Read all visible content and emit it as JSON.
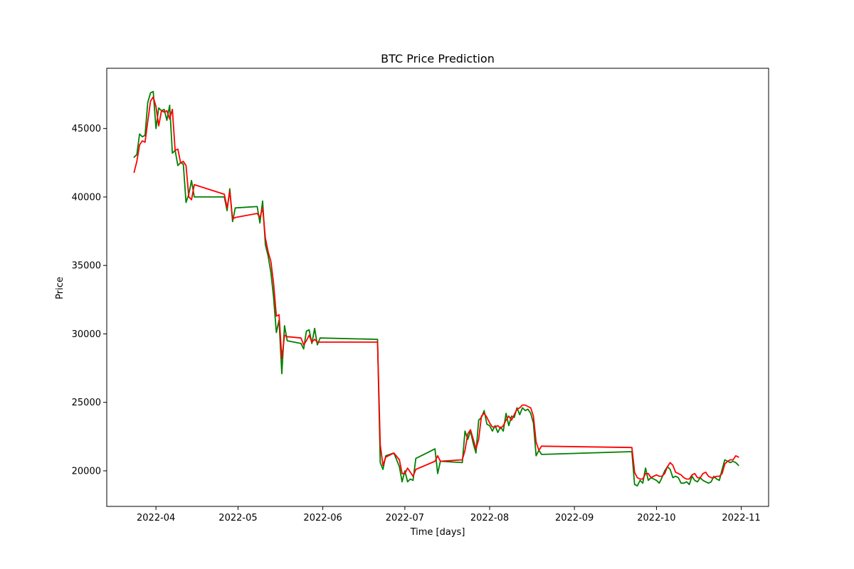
{
  "chart_data": {
    "type": "line",
    "title": "BTC Price Prediction",
    "xlabel": "Time [days]",
    "ylabel": "Price",
    "xlim": [
      "2022-03-14",
      "2022-11-11"
    ],
    "ylim": [
      17400,
      49400
    ],
    "grid": false,
    "x_ticks": [
      "2022-04",
      "2022-05",
      "2022-06",
      "2022-07",
      "2022-08",
      "2022-09",
      "2022-10",
      "2022-11"
    ],
    "y_ticks": [
      20000,
      25000,
      30000,
      35000,
      40000,
      45000
    ],
    "series": [
      {
        "color": "#008000",
        "points": [
          [
            "2022-03-24",
            42900
          ],
          [
            "2022-03-25",
            43100
          ],
          [
            "2022-03-26",
            44600
          ],
          [
            "2022-03-27",
            44400
          ],
          [
            "2022-03-28",
            44500
          ],
          [
            "2022-03-29",
            46900
          ],
          [
            "2022-03-30",
            47600
          ],
          [
            "2022-03-31",
            47700
          ],
          [
            "2022-04-01",
            45000
          ],
          [
            "2022-04-02",
            46500
          ],
          [
            "2022-04-03",
            46300
          ],
          [
            "2022-04-04",
            46400
          ],
          [
            "2022-04-05",
            45600
          ],
          [
            "2022-04-06",
            46700
          ],
          [
            "2022-04-07",
            43200
          ],
          [
            "2022-04-08",
            43400
          ],
          [
            "2022-04-09",
            42300
          ],
          [
            "2022-04-10",
            42500
          ],
          [
            "2022-04-11",
            42400
          ],
          [
            "2022-04-12",
            39600
          ],
          [
            "2022-04-13",
            40200
          ],
          [
            "2022-04-14",
            41200
          ],
          [
            "2022-04-15",
            40000
          ],
          [
            "2022-04-26",
            40000
          ],
          [
            "2022-04-27",
            39000
          ],
          [
            "2022-04-28",
            40600
          ],
          [
            "2022-04-29",
            38200
          ],
          [
            "2022-04-30",
            39200
          ],
          [
            "2022-05-08",
            39300
          ],
          [
            "2022-05-09",
            38100
          ],
          [
            "2022-05-10",
            39700
          ],
          [
            "2022-05-11",
            36500
          ],
          [
            "2022-05-12",
            35700
          ],
          [
            "2022-05-13",
            34500
          ],
          [
            "2022-05-14",
            32700
          ],
          [
            "2022-05-15",
            30100
          ],
          [
            "2022-05-16",
            31000
          ],
          [
            "2022-05-17",
            27100
          ],
          [
            "2022-05-18",
            30600
          ],
          [
            "2022-05-19",
            29500
          ],
          [
            "2022-05-24",
            29300
          ],
          [
            "2022-05-25",
            28900
          ],
          [
            "2022-05-26",
            30200
          ],
          [
            "2022-05-27",
            30300
          ],
          [
            "2022-05-28",
            29300
          ],
          [
            "2022-05-29",
            30400
          ],
          [
            "2022-05-30",
            29200
          ],
          [
            "2022-05-31",
            29700
          ],
          [
            "2022-06-21",
            29600
          ],
          [
            "2022-06-22",
            20600
          ],
          [
            "2022-06-23",
            20100
          ],
          [
            "2022-06-24",
            21100
          ],
          [
            "2022-06-27",
            21300
          ],
          [
            "2022-06-29",
            20300
          ],
          [
            "2022-06-30",
            19200
          ],
          [
            "2022-07-01",
            20000
          ],
          [
            "2022-07-02",
            19200
          ],
          [
            "2022-07-03",
            19400
          ],
          [
            "2022-07-04",
            19300
          ],
          [
            "2022-07-05",
            20900
          ],
          [
            "2022-07-12",
            21600
          ],
          [
            "2022-07-13",
            19800
          ],
          [
            "2022-07-14",
            20700
          ],
          [
            "2022-07-22",
            20600
          ],
          [
            "2022-07-23",
            22900
          ],
          [
            "2022-07-24",
            22300
          ],
          [
            "2022-07-25",
            22900
          ],
          [
            "2022-07-26",
            22000
          ],
          [
            "2022-07-27",
            21300
          ],
          [
            "2022-07-28",
            23700
          ],
          [
            "2022-07-29",
            23900
          ],
          [
            "2022-07-30",
            24400
          ],
          [
            "2022-07-31",
            23400
          ],
          [
            "2022-08-01",
            23300
          ],
          [
            "2022-08-02",
            22900
          ],
          [
            "2022-08-03",
            23300
          ],
          [
            "2022-08-04",
            22800
          ],
          [
            "2022-08-05",
            23200
          ],
          [
            "2022-08-06",
            22900
          ],
          [
            "2022-08-07",
            24200
          ],
          [
            "2022-08-08",
            23300
          ],
          [
            "2022-08-09",
            24000
          ],
          [
            "2022-08-10",
            23900
          ],
          [
            "2022-08-11",
            24600
          ],
          [
            "2022-08-12",
            24100
          ],
          [
            "2022-08-13",
            24600
          ],
          [
            "2022-08-14",
            24400
          ],
          [
            "2022-08-15",
            24500
          ],
          [
            "2022-08-16",
            24200
          ],
          [
            "2022-08-17",
            23500
          ],
          [
            "2022-08-18",
            21100
          ],
          [
            "2022-08-19",
            21500
          ],
          [
            "2022-08-20",
            21200
          ],
          [
            "2022-09-22",
            21400
          ],
          [
            "2022-09-23",
            19000
          ],
          [
            "2022-09-24",
            18900
          ],
          [
            "2022-09-25",
            19300
          ],
          [
            "2022-09-26",
            19100
          ],
          [
            "2022-09-27",
            20200
          ],
          [
            "2022-09-28",
            19300
          ],
          [
            "2022-09-29",
            19500
          ],
          [
            "2022-09-30",
            19400
          ],
          [
            "2022-10-01",
            19300
          ],
          [
            "2022-10-02",
            19100
          ],
          [
            "2022-10-03",
            19500
          ],
          [
            "2022-10-04",
            20000
          ],
          [
            "2022-10-05",
            20300
          ],
          [
            "2022-10-06",
            20100
          ],
          [
            "2022-10-07",
            19500
          ],
          [
            "2022-10-08",
            19600
          ],
          [
            "2022-10-09",
            19500
          ],
          [
            "2022-10-10",
            19100
          ],
          [
            "2022-10-11",
            19100
          ],
          [
            "2022-10-12",
            19200
          ],
          [
            "2022-10-13",
            19000
          ],
          [
            "2022-10-14",
            19600
          ],
          [
            "2022-10-15",
            19300
          ],
          [
            "2022-10-16",
            19200
          ],
          [
            "2022-10-17",
            19500
          ],
          [
            "2022-10-18",
            19300
          ],
          [
            "2022-10-19",
            19200
          ],
          [
            "2022-10-20",
            19100
          ],
          [
            "2022-10-21",
            19200
          ],
          [
            "2022-10-22",
            19600
          ],
          [
            "2022-10-23",
            19400
          ],
          [
            "2022-10-24",
            19300
          ],
          [
            "2022-10-25",
            20100
          ],
          [
            "2022-10-26",
            20800
          ],
          [
            "2022-10-27",
            20700
          ],
          [
            "2022-10-28",
            20600
          ],
          [
            "2022-10-29",
            20700
          ],
          [
            "2022-10-30",
            20600
          ],
          [
            "2022-10-31",
            20400
          ]
        ]
      },
      {
        "color": "#ff0000",
        "points": [
          [
            "2022-03-24",
            41800
          ],
          [
            "2022-03-25",
            42600
          ],
          [
            "2022-03-26",
            43800
          ],
          [
            "2022-03-27",
            44100
          ],
          [
            "2022-03-28",
            44000
          ],
          [
            "2022-03-29",
            45500
          ],
          [
            "2022-03-30",
            47000
          ],
          [
            "2022-03-31",
            47300
          ],
          [
            "2022-04-01",
            46600
          ],
          [
            "2022-04-02",
            45200
          ],
          [
            "2022-04-03",
            46300
          ],
          [
            "2022-04-04",
            46200
          ],
          [
            "2022-04-05",
            46300
          ],
          [
            "2022-04-06",
            45700
          ],
          [
            "2022-04-07",
            46400
          ],
          [
            "2022-04-08",
            43400
          ],
          [
            "2022-04-09",
            43500
          ],
          [
            "2022-04-10",
            42500
          ],
          [
            "2022-04-11",
            42600
          ],
          [
            "2022-04-12",
            42300
          ],
          [
            "2022-04-13",
            40000
          ],
          [
            "2022-04-14",
            39800
          ],
          [
            "2022-04-15",
            40900
          ],
          [
            "2022-04-26",
            40200
          ],
          [
            "2022-04-27",
            39200
          ],
          [
            "2022-04-28",
            40400
          ],
          [
            "2022-04-29",
            38400
          ],
          [
            "2022-04-30",
            38500
          ],
          [
            "2022-05-08",
            38800
          ],
          [
            "2022-05-09",
            38500
          ],
          [
            "2022-05-10",
            39200
          ],
          [
            "2022-05-11",
            37000
          ],
          [
            "2022-05-12",
            36000
          ],
          [
            "2022-05-13",
            35300
          ],
          [
            "2022-05-14",
            33700
          ],
          [
            "2022-05-15",
            31300
          ],
          [
            "2022-05-16",
            31400
          ],
          [
            "2022-05-17",
            28200
          ],
          [
            "2022-05-18",
            29900
          ],
          [
            "2022-05-19",
            29800
          ],
          [
            "2022-05-24",
            29700
          ],
          [
            "2022-05-25",
            29200
          ],
          [
            "2022-05-26",
            29500
          ],
          [
            "2022-05-27",
            29900
          ],
          [
            "2022-05-28",
            29400
          ],
          [
            "2022-05-29",
            29600
          ],
          [
            "2022-05-30",
            29400
          ],
          [
            "2022-05-31",
            29400
          ],
          [
            "2022-06-21",
            29400
          ],
          [
            "2022-06-22",
            21900
          ],
          [
            "2022-06-23",
            20400
          ],
          [
            "2022-06-24",
            21000
          ],
          [
            "2022-06-27",
            21300
          ],
          [
            "2022-06-29",
            20800
          ],
          [
            "2022-06-30",
            19800
          ],
          [
            "2022-07-01",
            19800
          ],
          [
            "2022-07-02",
            20200
          ],
          [
            "2022-07-03",
            19900
          ],
          [
            "2022-07-04",
            19600
          ],
          [
            "2022-07-05",
            20100
          ],
          [
            "2022-07-12",
            20700
          ],
          [
            "2022-07-13",
            21100
          ],
          [
            "2022-07-14",
            20700
          ],
          [
            "2022-07-22",
            20800
          ],
          [
            "2022-07-23",
            21500
          ],
          [
            "2022-07-24",
            22700
          ],
          [
            "2022-07-25",
            23000
          ],
          [
            "2022-07-26",
            22300
          ],
          [
            "2022-07-27",
            21600
          ],
          [
            "2022-07-28",
            22300
          ],
          [
            "2022-07-29",
            24000
          ],
          [
            "2022-07-30",
            24200
          ],
          [
            "2022-07-31",
            23900
          ],
          [
            "2022-08-01",
            23500
          ],
          [
            "2022-08-02",
            23200
          ],
          [
            "2022-08-03",
            23200
          ],
          [
            "2022-08-04",
            23300
          ],
          [
            "2022-08-05",
            23100
          ],
          [
            "2022-08-06",
            23300
          ],
          [
            "2022-08-07",
            23700
          ],
          [
            "2022-08-08",
            24000
          ],
          [
            "2022-08-09",
            23700
          ],
          [
            "2022-08-10",
            24100
          ],
          [
            "2022-08-11",
            24500
          ],
          [
            "2022-08-12",
            24600
          ],
          [
            "2022-08-13",
            24800
          ],
          [
            "2022-08-14",
            24800
          ],
          [
            "2022-08-15",
            24700
          ],
          [
            "2022-08-16",
            24600
          ],
          [
            "2022-08-17",
            24000
          ],
          [
            "2022-08-18",
            22100
          ],
          [
            "2022-08-19",
            21500
          ],
          [
            "2022-08-20",
            21800
          ],
          [
            "2022-09-22",
            21700
          ],
          [
            "2022-09-23",
            19900
          ],
          [
            "2022-09-24",
            19500
          ],
          [
            "2022-09-25",
            19400
          ],
          [
            "2022-09-26",
            19400
          ],
          [
            "2022-09-27",
            19800
          ],
          [
            "2022-09-28",
            19800
          ],
          [
            "2022-09-29",
            19500
          ],
          [
            "2022-09-30",
            19600
          ],
          [
            "2022-10-01",
            19700
          ],
          [
            "2022-10-02",
            19600
          ],
          [
            "2022-10-03",
            19600
          ],
          [
            "2022-10-04",
            19800
          ],
          [
            "2022-10-05",
            20300
          ],
          [
            "2022-10-06",
            20600
          ],
          [
            "2022-10-07",
            20400
          ],
          [
            "2022-10-08",
            19900
          ],
          [
            "2022-10-09",
            19800
          ],
          [
            "2022-10-10",
            19700
          ],
          [
            "2022-10-11",
            19500
          ],
          [
            "2022-10-12",
            19400
          ],
          [
            "2022-10-13",
            19400
          ],
          [
            "2022-10-14",
            19700
          ],
          [
            "2022-10-15",
            19800
          ],
          [
            "2022-10-16",
            19500
          ],
          [
            "2022-10-17",
            19500
          ],
          [
            "2022-10-18",
            19800
          ],
          [
            "2022-10-19",
            19900
          ],
          [
            "2022-10-20",
            19600
          ],
          [
            "2022-10-21",
            19500
          ],
          [
            "2022-10-22",
            19500
          ],
          [
            "2022-10-23",
            19600
          ],
          [
            "2022-10-24",
            19600
          ],
          [
            "2022-10-25",
            19800
          ],
          [
            "2022-10-26",
            20500
          ],
          [
            "2022-10-27",
            20700
          ],
          [
            "2022-10-28",
            20800
          ],
          [
            "2022-10-29",
            20800
          ],
          [
            "2022-10-30",
            21100
          ],
          [
            "2022-10-31",
            21000
          ]
        ]
      }
    ]
  }
}
